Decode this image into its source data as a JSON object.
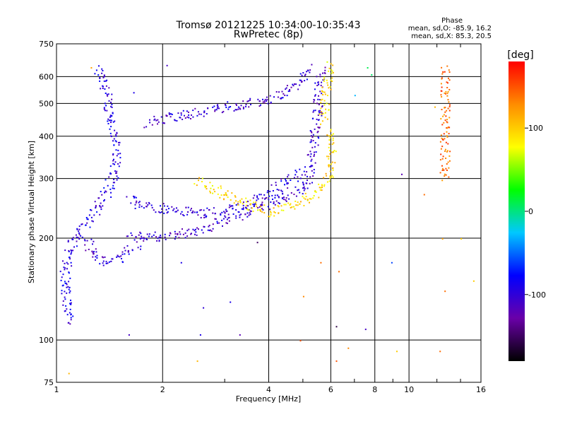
{
  "chart_data": {
    "type": "scatter",
    "title": "Tromsø 20121225 10:34:00-10:35:43",
    "subtitle": "RwPretec (8p)",
    "xlabel": "Frequency [MHz]",
    "ylabel": "Stationary phase Virtual Height [km]",
    "xscale": "log",
    "yscale": "log",
    "xlim": [
      1,
      16
    ],
    "ylim": [
      75,
      750
    ],
    "x_ticks": [
      "1",
      "2",
      "4",
      "6",
      "8",
      "10",
      "16"
    ],
    "y_ticks": [
      "75",
      "100",
      "200",
      "300",
      "400",
      "500",
      "600",
      "750"
    ],
    "grid": true,
    "phase_info": {
      "title": "Phase",
      "line_o": "mean, sd,O: -85.9, 16.2",
      "line_x": "mean, sd,X:  85.3, 20.5"
    },
    "colorbar": {
      "label": "[deg]",
      "range": [
        -180,
        180
      ],
      "ticks": [
        "100",
        "0",
        "-100"
      ],
      "colors": [
        "#000000",
        "#6a00a8",
        "#0000ff",
        "#00c8ff",
        "#00ff00",
        "#ffff00",
        "#ff8c00",
        "#ff0000"
      ]
    },
    "traces": [
      {
        "name": "",
        "phase_mean": -95,
        "points": [
          [
            1.3,
            640
          ],
          [
            1.33,
            600
          ],
          [
            1.36,
            560
          ],
          [
            1.39,
            520
          ],
          [
            1.4,
            490
          ],
          [
            1.42,
            460
          ],
          [
            1.43,
            430
          ],
          [
            1.45,
            400
          ],
          [
            1.46,
            370
          ],
          [
            1.47,
            340
          ],
          [
            1.46,
            320
          ],
          [
            1.43,
            300
          ],
          [
            1.4,
            280
          ],
          [
            1.35,
            260
          ],
          [
            1.3,
            245
          ],
          [
            1.25,
            232
          ],
          [
            1.2,
            222
          ],
          [
            1.15,
            210
          ],
          [
            1.12,
            200
          ],
          [
            1.1,
            190
          ],
          [
            1.08,
            180
          ],
          [
            1.06,
            168
          ],
          [
            1.05,
            150
          ],
          [
            1.06,
            135
          ],
          [
            1.08,
            120
          ],
          [
            1.1,
            112
          ]
        ]
      },
      {
        "name": "",
        "phase_mean": -100,
        "points": [
          [
            1.2,
            200
          ],
          [
            1.3,
            175
          ],
          [
            1.4,
            170
          ],
          [
            1.5,
            175
          ],
          [
            1.6,
            185
          ],
          [
            1.7,
            195
          ]
        ]
      },
      {
        "name": "",
        "phase_mean": -105,
        "points": [
          [
            1.6,
            205
          ],
          [
            1.8,
            202
          ],
          [
            2.0,
            203
          ],
          [
            2.2,
            206
          ],
          [
            2.4,
            210
          ],
          [
            2.6,
            215
          ],
          [
            2.8,
            220
          ],
          [
            3.0,
            226
          ],
          [
            3.2,
            232
          ],
          [
            3.5,
            240
          ],
          [
            3.8,
            248
          ],
          [
            4.0,
            255
          ],
          [
            4.3,
            262
          ],
          [
            4.6,
            270
          ],
          [
            4.9,
            280
          ],
          [
            5.1,
            290
          ],
          [
            5.2,
            310
          ],
          [
            5.3,
            340
          ],
          [
            5.35,
            380
          ],
          [
            5.4,
            420
          ],
          [
            5.45,
            460
          ],
          [
            5.5,
            520
          ],
          [
            5.55,
            580
          ],
          [
            5.6,
            640
          ]
        ]
      },
      {
        "name": "",
        "phase_mean": -100,
        "points": [
          [
            1.6,
            260
          ],
          [
            1.8,
            250
          ],
          [
            2.0,
            245
          ],
          [
            2.3,
            240
          ],
          [
            2.6,
            238
          ],
          [
            3.0,
            242
          ],
          [
            3.4,
            250
          ],
          [
            3.8,
            265
          ],
          [
            4.2,
            280
          ],
          [
            4.6,
            300
          ],
          [
            5.0,
            320
          ]
        ]
      },
      {
        "name": "",
        "phase_mean": -105,
        "points": [
          [
            1.8,
            440
          ],
          [
            2.0,
            450
          ],
          [
            2.2,
            460
          ],
          [
            2.4,
            470
          ],
          [
            2.7,
            480
          ],
          [
            3.0,
            490
          ],
          [
            3.4,
            500
          ],
          [
            3.8,
            510
          ],
          [
            4.2,
            530
          ],
          [
            4.6,
            560
          ],
          [
            5.0,
            600
          ],
          [
            5.3,
            640
          ]
        ]
      },
      {
        "name": "",
        "phase_mean": 95,
        "points": [
          [
            2.5,
            300
          ],
          [
            2.7,
            285
          ],
          [
            2.9,
            275
          ],
          [
            3.1,
            265
          ],
          [
            3.4,
            255
          ],
          [
            3.7,
            245
          ],
          [
            4.0,
            240
          ],
          [
            4.4,
            245
          ],
          [
            4.8,
            255
          ],
          [
            5.2,
            265
          ],
          [
            5.6,
            280
          ],
          [
            5.9,
            300
          ],
          [
            6.0,
            340
          ],
          [
            6.05,
            380
          ],
          [
            6.0,
            420
          ]
        ]
      },
      {
        "name": "",
        "phase_mean": 90,
        "points": [
          [
            5.7,
            450
          ],
          [
            5.75,
            500
          ],
          [
            5.8,
            540
          ],
          [
            5.85,
            580
          ],
          [
            5.9,
            620
          ],
          [
            6.0,
            650
          ]
        ]
      },
      {
        "name": "",
        "phase_mean": 140,
        "points": [
          [
            12.6,
            640
          ],
          [
            12.6,
            600
          ],
          [
            12.6,
            550
          ],
          [
            12.6,
            500
          ],
          [
            12.6,
            460
          ],
          [
            12.6,
            410
          ],
          [
            12.6,
            370
          ],
          [
            12.6,
            330
          ],
          [
            12.6,
            300
          ]
        ]
      }
    ],
    "scatter_noise": [
      {
        "x": 2.05,
        "y": 650,
        "phase": -110
      },
      {
        "x": 1.65,
        "y": 540,
        "phase": -90
      },
      {
        "x": 1.25,
        "y": 640,
        "phase": 120
      },
      {
        "x": 7.6,
        "y": 640,
        "phase": 10
      },
      {
        "x": 7.8,
        "y": 610,
        "phase": 5
      },
      {
        "x": 9.5,
        "y": 310,
        "phase": -120
      },
      {
        "x": 11.0,
        "y": 270,
        "phase": 140
      },
      {
        "x": 14.0,
        "y": 200,
        "phase": 100
      },
      {
        "x": 8.9,
        "y": 170,
        "phase": -60
      },
      {
        "x": 6.3,
        "y": 160,
        "phase": 140
      },
      {
        "x": 15.2,
        "y": 150,
        "phase": 100
      },
      {
        "x": 12.6,
        "y": 140,
        "phase": 140
      },
      {
        "x": 3.7,
        "y": 195,
        "phase": -150
      },
      {
        "x": 2.25,
        "y": 170,
        "phase": -90
      },
      {
        "x": 5.6,
        "y": 170,
        "phase": 140
      },
      {
        "x": 6.2,
        "y": 110,
        "phase": -160
      },
      {
        "x": 7.5,
        "y": 108,
        "phase": -110
      },
      {
        "x": 5.0,
        "y": 135,
        "phase": 130
      },
      {
        "x": 4.9,
        "y": 100,
        "phase": 150
      },
      {
        "x": 6.2,
        "y": 87,
        "phase": 150
      },
      {
        "x": 9.2,
        "y": 93,
        "phase": 100
      },
      {
        "x": 12.2,
        "y": 93,
        "phase": 140
      },
      {
        "x": 1.6,
        "y": 104,
        "phase": -110
      },
      {
        "x": 2.55,
        "y": 104,
        "phase": -90
      },
      {
        "x": 3.3,
        "y": 104,
        "phase": -120
      },
      {
        "x": 2.5,
        "y": 87,
        "phase": 110
      },
      {
        "x": 1.08,
        "y": 80,
        "phase": 110
      },
      {
        "x": 3.1,
        "y": 130,
        "phase": -90
      },
      {
        "x": 2.6,
        "y": 125,
        "phase": -100
      },
      {
        "x": 6.7,
        "y": 95,
        "phase": 130
      },
      {
        "x": 7.0,
        "y": 530,
        "phase": -30
      },
      {
        "x": 11.8,
        "y": 490,
        "phase": 110
      },
      {
        "x": 12.4,
        "y": 200,
        "phase": 120
      }
    ]
  }
}
